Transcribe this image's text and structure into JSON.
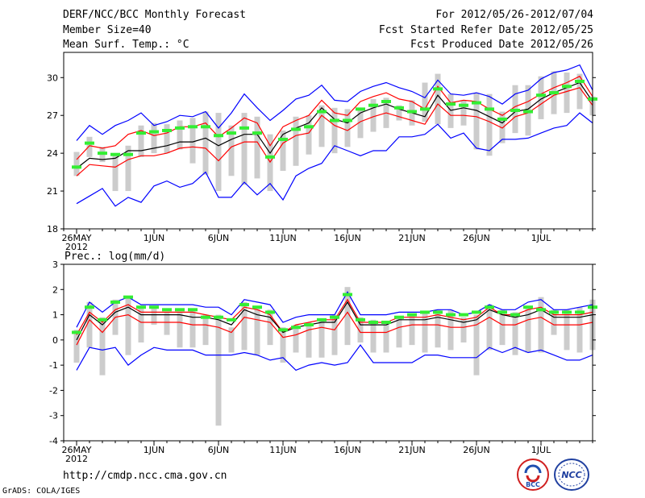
{
  "header": {
    "title": "DERF/NCC/BCC Monthly Forecast",
    "member_size": "Member Size=40",
    "variable": "Mean Surf. Temp.: °C",
    "period": "For 2012/05/26-2012/07/04",
    "fcst_started": "Fcst Started Refer Date 2012/05/25",
    "fcst_produced": "Fcst Produced Date 2012/05/26"
  },
  "footer": {
    "url": "http://cmdp.ncc.cma.gov.cn",
    "credit": "GrADS: COLA/IGES",
    "logo_bcc": "BCC",
    "logo_ncc": "NCC"
  },
  "colors": {
    "max_min": "#0000ff",
    "spread": "#ff0000",
    "mean": "#000000",
    "analog": "#33ee33",
    "range_bar": "#cccccc"
  },
  "chart_data": [
    {
      "type": "line",
      "title": "Mean Surf. Temp.: °C",
      "xlabel": "",
      "ylabel": "",
      "x_ticks": [
        {
          "day": 0,
          "label": "26MAY"
        },
        {
          "day": 6,
          "label": "1JUN"
        },
        {
          "day": 11,
          "label": "6JUN"
        },
        {
          "day": 16,
          "label": "11JUN"
        },
        {
          "day": 21,
          "label": "16JUN"
        },
        {
          "day": 26,
          "label": "21JUN"
        },
        {
          "day": 31,
          "label": "26JUN"
        },
        {
          "day": 36,
          "label": "1JUL"
        }
      ],
      "year_label": "2012",
      "xlim": [
        -1,
        40
      ],
      "ylim": [
        18,
        32
      ],
      "y_ticks": [
        18,
        21,
        24,
        27,
        30
      ],
      "series": [
        {
          "name": "max",
          "color": "#0000ff",
          "values": [
            25.0,
            26.2,
            25.5,
            26.2,
            26.6,
            27.2,
            26.2,
            26.5,
            27.0,
            26.9,
            27.3,
            26.0,
            27.2,
            28.7,
            27.6,
            26.6,
            27.4,
            28.3,
            28.6,
            29.4,
            28.2,
            28.1,
            28.9,
            29.3,
            29.6,
            29.2,
            28.9,
            28.4,
            29.8,
            28.7,
            28.6,
            28.8,
            28.5,
            27.9,
            28.7,
            29.0,
            29.9,
            30.4,
            30.6,
            31.0,
            29.0
          ]
        },
        {
          "name": "upper",
          "color": "#ff0000",
          "values": [
            23.5,
            24.6,
            24.4,
            24.6,
            25.5,
            25.8,
            25.4,
            25.6,
            26.1,
            26.1,
            26.4,
            25.3,
            26.0,
            26.8,
            26.4,
            24.6,
            26.1,
            26.6,
            27.0,
            28.2,
            27.2,
            27.0,
            28.1,
            28.5,
            28.8,
            28.3,
            28.1,
            27.5,
            29.3,
            28.0,
            28.2,
            28.1,
            27.5,
            27.0,
            27.7,
            28.1,
            28.7,
            29.2,
            29.6,
            30.1,
            28.5
          ]
        },
        {
          "name": "mean",
          "color": "#000000",
          "values": [
            22.8,
            23.6,
            23.5,
            23.6,
            24.2,
            24.2,
            24.4,
            24.6,
            24.9,
            24.9,
            25.2,
            24.6,
            25.1,
            25.5,
            25.5,
            24.0,
            25.5,
            26.0,
            26.4,
            27.6,
            26.7,
            26.4,
            27.2,
            27.6,
            27.9,
            27.5,
            27.2,
            26.9,
            28.6,
            27.4,
            27.6,
            27.4,
            26.9,
            26.4,
            27.3,
            27.5,
            28.3,
            28.8,
            29.2,
            29.6,
            28.1
          ]
        },
        {
          "name": "lower",
          "color": "#ff0000",
          "values": [
            22.2,
            23.1,
            23.0,
            22.9,
            23.5,
            23.8,
            23.8,
            24.0,
            24.4,
            24.5,
            24.4,
            23.4,
            24.5,
            24.9,
            24.9,
            23.3,
            24.8,
            25.4,
            25.6,
            27.0,
            26.2,
            25.8,
            26.5,
            26.9,
            27.2,
            26.9,
            26.6,
            26.3,
            27.9,
            27.0,
            27.0,
            26.9,
            26.5,
            26.0,
            26.9,
            27.2,
            27.9,
            28.6,
            28.9,
            29.2,
            27.8
          ]
        },
        {
          "name": "min",
          "color": "#0000ff",
          "values": [
            20.0,
            20.6,
            21.2,
            19.8,
            20.5,
            20.1,
            21.4,
            21.8,
            21.3,
            21.6,
            22.5,
            20.5,
            20.5,
            21.7,
            20.7,
            21.6,
            20.3,
            22.2,
            22.8,
            23.2,
            24.6,
            24.2,
            23.8,
            24.2,
            24.2,
            25.3,
            25.3,
            25.5,
            26.3,
            25.2,
            25.6,
            24.4,
            24.2,
            25.1,
            25.1,
            25.2,
            25.6,
            26.0,
            26.2,
            27.2,
            26.4
          ]
        }
      ],
      "range_bars": [
        {
          "day": 0,
          "low": 22.2,
          "high": 24.1
        },
        {
          "day": 1,
          "low": 23.7,
          "high": 25.3
        },
        {
          "day": 2,
          "low": 23.3,
          "high": 24.5
        },
        {
          "day": 3,
          "low": 21.0,
          "high": 24.0
        },
        {
          "day": 4,
          "low": 21.0,
          "high": 24.6
        },
        {
          "day": 5,
          "low": 23.7,
          "high": 26.2
        },
        {
          "day": 6,
          "low": 24.0,
          "high": 26.4
        },
        {
          "day": 7,
          "low": 24.0,
          "high": 26.3
        },
        {
          "day": 8,
          "low": 24.3,
          "high": 26.6
        },
        {
          "day": 9,
          "low": 23.2,
          "high": 26.8
        },
        {
          "day": 10,
          "low": 22.3,
          "high": 27.3
        },
        {
          "day": 11,
          "low": 21.0,
          "high": 27.2
        },
        {
          "day": 12,
          "low": 22.2,
          "high": 26.2
        },
        {
          "day": 13,
          "low": 21.5,
          "high": 27.2
        },
        {
          "day": 14,
          "low": 22.0,
          "high": 26.9
        },
        {
          "day": 15,
          "low": 21.0,
          "high": 25.5
        },
        {
          "day": 16,
          "low": 22.6,
          "high": 25.8
        },
        {
          "day": 17,
          "low": 23.0,
          "high": 26.9
        },
        {
          "day": 18,
          "low": 23.9,
          "high": 27.0
        },
        {
          "day": 19,
          "low": 24.5,
          "high": 27.8
        },
        {
          "day": 20,
          "low": 24.0,
          "high": 27.6
        },
        {
          "day": 21,
          "low": 24.5,
          "high": 27.5
        },
        {
          "day": 22,
          "low": 25.2,
          "high": 27.6
        },
        {
          "day": 23,
          "low": 25.7,
          "high": 28.3
        },
        {
          "day": 24,
          "low": 26.0,
          "high": 28.4
        },
        {
          "day": 25,
          "low": 26.6,
          "high": 27.8
        },
        {
          "day": 26,
          "low": 26.2,
          "high": 28.2
        },
        {
          "day": 27,
          "low": 26.5,
          "high": 29.6
        },
        {
          "day": 28,
          "low": 26.3,
          "high": 30.3
        },
        {
          "day": 29,
          "low": 26.0,
          "high": 28.7
        },
        {
          "day": 30,
          "low": 26.2,
          "high": 28.2
        },
        {
          "day": 31,
          "low": 24.3,
          "high": 28.8
        },
        {
          "day": 32,
          "low": 23.8,
          "high": 28.7
        },
        {
          "day": 33,
          "low": 24.8,
          "high": 27.3
        },
        {
          "day": 34,
          "low": 25.6,
          "high": 29.4
        },
        {
          "day": 35,
          "low": 25.4,
          "high": 29.4
        },
        {
          "day": 36,
          "low": 26.7,
          "high": 30.1
        },
        {
          "day": 37,
          "low": 27.1,
          "high": 30.5
        },
        {
          "day": 38,
          "low": 27.2,
          "high": 30.4
        },
        {
          "day": 39,
          "low": 27.5,
          "high": 30.3
        },
        {
          "day": 40,
          "low": 27.0,
          "high": 28.5
        }
      ],
      "analog_marks": [
        22.9,
        24.8,
        24.0,
        23.9,
        23.9,
        25.6,
        25.7,
        25.8,
        26.0,
        26.1,
        26.1,
        25.4,
        25.6,
        26.0,
        25.6,
        23.7,
        25.1,
        25.9,
        26.1,
        27.3,
        26.6,
        26.6,
        27.5,
        27.8,
        28.1,
        27.6,
        27.3,
        27.5,
        29.1,
        27.9,
        27.8,
        28.0,
        27.5,
        26.7,
        27.4,
        27.3,
        28.6,
        28.8,
        29.3,
        29.7,
        28.3
      ]
    },
    {
      "type": "line",
      "title": "Prec.: log(mm/d)",
      "xlabel": "",
      "ylabel": "",
      "x_ticks": [
        {
          "day": 0,
          "label": "26MAY"
        },
        {
          "day": 6,
          "label": "1JUN"
        },
        {
          "day": 11,
          "label": "6JUN"
        },
        {
          "day": 16,
          "label": "11JUN"
        },
        {
          "day": 21,
          "label": "16JUN"
        },
        {
          "day": 26,
          "label": "21JUN"
        },
        {
          "day": 31,
          "label": "26JUN"
        },
        {
          "day": 36,
          "label": "1JUL"
        }
      ],
      "year_label": "2012",
      "xlim": [
        -1,
        40
      ],
      "ylim": [
        -4,
        3
      ],
      "y_ticks": [
        -4,
        -3,
        -2,
        -1,
        0,
        1,
        2,
        3
      ],
      "series": [
        {
          "name": "max",
          "color": "#0000ff",
          "values": [
            0.5,
            1.5,
            1.1,
            1.5,
            1.7,
            1.4,
            1.4,
            1.4,
            1.4,
            1.4,
            1.3,
            1.3,
            1.0,
            1.6,
            1.5,
            1.4,
            0.7,
            0.9,
            1.0,
            1.0,
            1.0,
            1.9,
            1.0,
            1.0,
            1.0,
            1.1,
            1.1,
            1.1,
            1.2,
            1.2,
            1.0,
            1.1,
            1.4,
            1.2,
            1.2,
            1.5,
            1.6,
            1.2,
            1.2,
            1.3,
            1.4
          ]
        },
        {
          "name": "upper",
          "color": "#ff0000",
          "values": [
            0.2,
            1.1,
            0.7,
            1.2,
            1.4,
            1.1,
            1.1,
            1.1,
            1.1,
            1.1,
            1.0,
            0.9,
            0.8,
            1.3,
            1.2,
            1.0,
            0.3,
            0.6,
            0.7,
            0.8,
            0.8,
            1.6,
            0.7,
            0.7,
            0.7,
            0.9,
            0.9,
            0.9,
            1.0,
            0.9,
            0.8,
            0.9,
            1.3,
            1.0,
            1.0,
            1.2,
            1.3,
            1.0,
            1.0,
            1.0,
            1.1
          ]
        },
        {
          "name": "mean",
          "color": "#000000",
          "values": [
            0.0,
            1.0,
            0.6,
            1.1,
            1.3,
            1.0,
            1.0,
            1.0,
            1.0,
            0.9,
            0.9,
            0.8,
            0.6,
            1.2,
            1.0,
            0.9,
            0.3,
            0.5,
            0.6,
            0.7,
            0.7,
            1.5,
            0.6,
            0.6,
            0.6,
            0.8,
            0.8,
            0.8,
            0.9,
            0.8,
            0.7,
            0.8,
            1.2,
            1.0,
            0.9,
            1.0,
            1.2,
            0.9,
            0.9,
            0.9,
            1.0
          ]
        },
        {
          "name": "lower",
          "color": "#ff0000",
          "values": [
            -0.2,
            0.8,
            0.3,
            0.9,
            1.0,
            0.7,
            0.7,
            0.7,
            0.7,
            0.6,
            0.6,
            0.5,
            0.3,
            0.9,
            0.8,
            0.7,
            0.1,
            0.2,
            0.4,
            0.5,
            0.4,
            1.1,
            0.3,
            0.3,
            0.3,
            0.5,
            0.6,
            0.6,
            0.6,
            0.5,
            0.5,
            0.6,
            0.9,
            0.6,
            0.6,
            0.8,
            0.9,
            0.6,
            0.6,
            0.6,
            0.7
          ]
        },
        {
          "name": "min",
          "color": "#0000ff",
          "values": [
            -1.2,
            -0.3,
            -0.4,
            -0.3,
            -1.0,
            -0.6,
            -0.3,
            -0.4,
            -0.4,
            -0.4,
            -0.6,
            -0.6,
            -0.6,
            -0.5,
            -0.6,
            -0.8,
            -0.7,
            -1.2,
            -1.0,
            -0.9,
            -1.0,
            -0.9,
            -0.2,
            -0.9,
            -0.9,
            -0.9,
            -0.9,
            -0.6,
            -0.6,
            -0.7,
            -0.7,
            -0.7,
            -0.3,
            -0.5,
            -0.3,
            -0.5,
            -0.4,
            -0.6,
            -0.8,
            -0.8,
            -0.6
          ]
        }
      ],
      "range_bars": [
        {
          "day": 0,
          "low": -0.9,
          "high": 0.4
        },
        {
          "day": 1,
          "low": -0.3,
          "high": 1.5
        },
        {
          "day": 2,
          "low": -1.4,
          "high": 0.9
        },
        {
          "day": 3,
          "low": 0.2,
          "high": 1.6
        },
        {
          "day": 4,
          "low": -0.6,
          "high": 1.7
        },
        {
          "day": 5,
          "low": -0.1,
          "high": 1.3
        },
        {
          "day": 6,
          "low": 0.6,
          "high": 1.3
        },
        {
          "day": 7,
          "low": 0.2,
          "high": 1.1
        },
        {
          "day": 8,
          "low": -0.3,
          "high": 1.1
        },
        {
          "day": 9,
          "low": -0.3,
          "high": 1.2
        },
        {
          "day": 10,
          "low": -0.2,
          "high": 1.0
        },
        {
          "day": 11,
          "low": -3.4,
          "high": 1.0
        },
        {
          "day": 12,
          "low": -0.5,
          "high": 0.5
        },
        {
          "day": 13,
          "low": -0.4,
          "high": 1.5
        },
        {
          "day": 14,
          "low": -0.6,
          "high": 1.3
        },
        {
          "day": 15,
          "low": -0.2,
          "high": 1.2
        },
        {
          "day": 16,
          "low": -0.9,
          "high": 0.5
        },
        {
          "day": 17,
          "low": -0.5,
          "high": 0.6
        },
        {
          "day": 18,
          "low": -0.7,
          "high": 0.7
        },
        {
          "day": 19,
          "low": -0.7,
          "high": 0.8
        },
        {
          "day": 20,
          "low": -0.6,
          "high": 1.0
        },
        {
          "day": 21,
          "low": -0.2,
          "high": 2.1
        },
        {
          "day": 22,
          "low": -0.1,
          "high": 0.9
        },
        {
          "day": 23,
          "low": -0.5,
          "high": 0.8
        },
        {
          "day": 24,
          "low": -0.5,
          "high": 0.6
        },
        {
          "day": 25,
          "low": -0.3,
          "high": 0.9
        },
        {
          "day": 26,
          "low": -0.2,
          "high": 1.0
        },
        {
          "day": 27,
          "low": -0.5,
          "high": 1.1
        },
        {
          "day": 28,
          "low": -0.3,
          "high": 1.2
        },
        {
          "day": 29,
          "low": -0.4,
          "high": 1.2
        },
        {
          "day": 30,
          "low": -0.1,
          "high": 0.9
        },
        {
          "day": 31,
          "low": -1.4,
          "high": 1.0
        },
        {
          "day": 32,
          "low": -0.4,
          "high": 1.4
        },
        {
          "day": 33,
          "low": -0.2,
          "high": 1.2
        },
        {
          "day": 34,
          "low": -0.6,
          "high": 1.1
        },
        {
          "day": 35,
          "low": -0.5,
          "high": 1.3
        },
        {
          "day": 36,
          "low": -0.5,
          "high": 1.7
        },
        {
          "day": 37,
          "low": 0.2,
          "high": 1.2
        },
        {
          "day": 38,
          "low": -0.4,
          "high": 1.2
        },
        {
          "day": 39,
          "low": -0.5,
          "high": 1.3
        },
        {
          "day": 40,
          "low": -0.4,
          "high": 1.6
        }
      ],
      "analog_marks": [
        0.3,
        1.3,
        0.8,
        1.5,
        1.7,
        1.3,
        1.3,
        1.2,
        1.2,
        1.2,
        0.9,
        0.9,
        0.8,
        1.4,
        1.3,
        1.1,
        0.4,
        0.5,
        0.6,
        0.8,
        0.9,
        1.8,
        0.8,
        0.7,
        0.7,
        0.9,
        1.0,
        1.1,
        1.1,
        1.0,
        1.0,
        1.1,
        1.3,
        1.1,
        1.0,
        1.3,
        1.2,
        1.1,
        1.1,
        1.1,
        1.3
      ]
    }
  ]
}
